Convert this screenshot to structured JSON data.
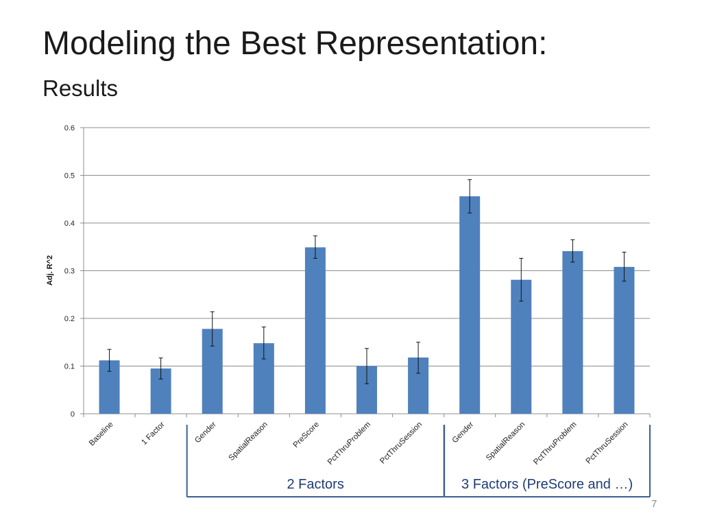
{
  "slide": {
    "title": "Modeling the Best Representation:",
    "subtitle": "Results",
    "page_number": "7"
  },
  "chart_data": {
    "type": "bar",
    "title": "",
    "xlabel": "",
    "ylabel": "Adj. R^2",
    "ylim": [
      0,
      0.6
    ],
    "yticks": [
      "0",
      "0.1",
      "0.2",
      "0.3",
      "0.4",
      "0.5",
      "0.6"
    ],
    "grid": true,
    "bar_color": "#4f81bd",
    "categories": [
      "Baseline",
      "1 Factor",
      "Gender",
      "SpatialReason",
      "PreScore",
      "PctThruProblem",
      "PctThruSession",
      "Gender",
      "SpatialReason",
      "PctThruProblem",
      "PctThruSession"
    ],
    "values": [
      0.112,
      0.095,
      0.178,
      0.148,
      0.349,
      0.1,
      0.118,
      0.456,
      0.281,
      0.341,
      0.308
    ],
    "error_low": [
      0.089,
      0.073,
      0.142,
      0.115,
      0.326,
      0.063,
      0.085,
      0.421,
      0.236,
      0.318,
      0.278
    ],
    "error_high": [
      0.135,
      0.117,
      0.214,
      0.182,
      0.373,
      0.137,
      0.15,
      0.491,
      0.326,
      0.365,
      0.339
    ],
    "groups": [
      {
        "label": "2 Factors",
        "start": 2,
        "end": 6
      },
      {
        "label": "3 Factors (PreScore and …)",
        "start": 7,
        "end": 10
      }
    ]
  }
}
